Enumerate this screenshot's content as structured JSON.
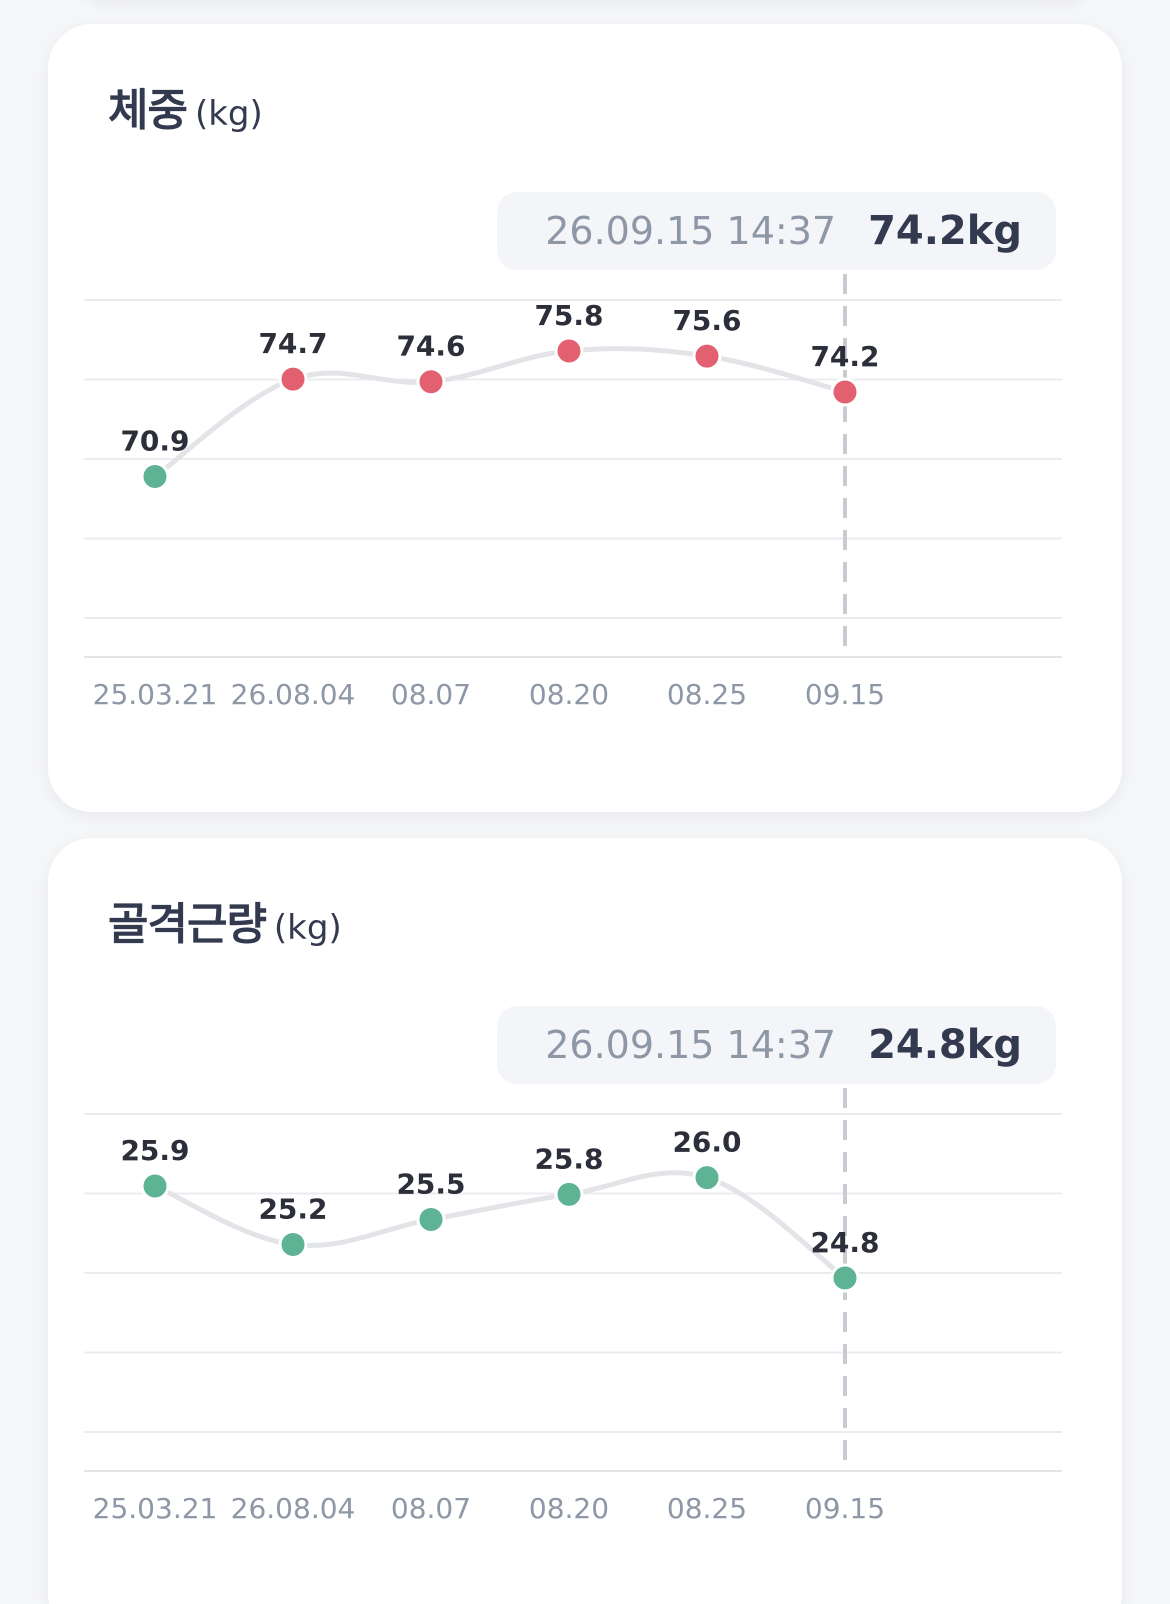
{
  "chart_data": [
    {
      "type": "line",
      "title": "체중",
      "unit": "(kg)",
      "categories": [
        "25.03.21",
        "26.08.04",
        "08.07",
        "08.20",
        "08.25",
        "09.15"
      ],
      "values": [
        70.9,
        74.7,
        74.6,
        75.8,
        75.6,
        74.2
      ],
      "data_labels": [
        "70.9",
        "74.7",
        "74.6",
        "75.8",
        "75.6",
        "74.2"
      ],
      "point_colors": [
        "#5db394",
        "#e2606f",
        "#e2606f",
        "#e2606f",
        "#e2606f",
        "#e2606f"
      ],
      "line_color": "#e3e4e8",
      "grid": true,
      "selected_index": 5,
      "tooltip": {
        "time": "26.09.15 14:37",
        "value": "74.2kg"
      }
    },
    {
      "type": "line",
      "title": "골격근량",
      "unit": "(kg)",
      "categories": [
        "25.03.21",
        "26.08.04",
        "08.07",
        "08.20",
        "08.25",
        "09.15"
      ],
      "values": [
        25.9,
        25.2,
        25.5,
        25.8,
        26.0,
        24.8
      ],
      "data_labels": [
        "25.9",
        "25.2",
        "25.5",
        "25.8",
        "26.0",
        "24.8"
      ],
      "point_colors": [
        "#5db394",
        "#5db394",
        "#5db394",
        "#5db394",
        "#5db394",
        "#5db394"
      ],
      "line_color": "#e3e4e8",
      "grid": true,
      "selected_index": 5,
      "tooltip": {
        "time": "26.09.15 14:37",
        "value": "24.8kg"
      }
    }
  ]
}
